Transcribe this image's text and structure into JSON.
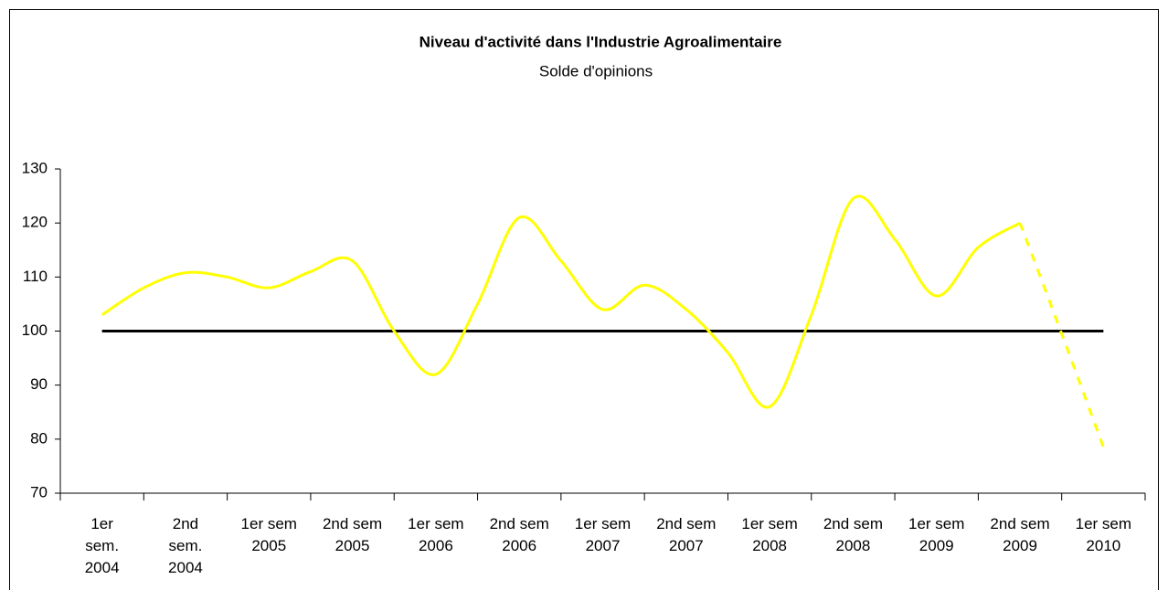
{
  "chart_data": {
    "type": "line",
    "title": "Niveau d'activité dans l'Industrie Agroalimentaire",
    "subtitle": "Solde d'opinions",
    "categories": [
      "1er\nsem.\n2004",
      null,
      "2nd\nsem.\n2004",
      null,
      "1er sem\n2005",
      null,
      "2nd sem\n2005",
      null,
      "1er sem\n2006",
      null,
      "2nd sem\n2006",
      null,
      "1er sem\n2007",
      null,
      "2nd sem\n2007",
      null,
      "1er sem\n2008",
      null,
      "2nd sem\n2008",
      null,
      "1er sem\n2009",
      null,
      "2nd sem\n2009",
      null,
      "1er sem\n2010"
    ],
    "series": [
      {
        "color": "#ffff00",
        "style": "solid",
        "values": [
          103,
          108,
          110.8,
          110,
          108,
          111,
          113,
          100,
          92,
          105,
          121,
          113,
          104,
          108.5,
          104,
          96,
          86,
          103,
          124.5,
          117,
          106.5,
          115.5,
          120,
          null,
          null
        ]
      },
      {
        "color": "#ffff00",
        "style": "dashed",
        "values": [
          null,
          null,
          null,
          null,
          null,
          null,
          null,
          null,
          null,
          null,
          null,
          null,
          null,
          null,
          null,
          null,
          null,
          null,
          null,
          null,
          null,
          null,
          120,
          99.5,
          78.5
        ]
      }
    ],
    "reference_value": 100,
    "reference_color": "#000000",
    "ylim": [
      70,
      130
    ],
    "yticks": [
      70,
      80,
      90,
      100,
      110,
      120,
      130
    ]
  }
}
